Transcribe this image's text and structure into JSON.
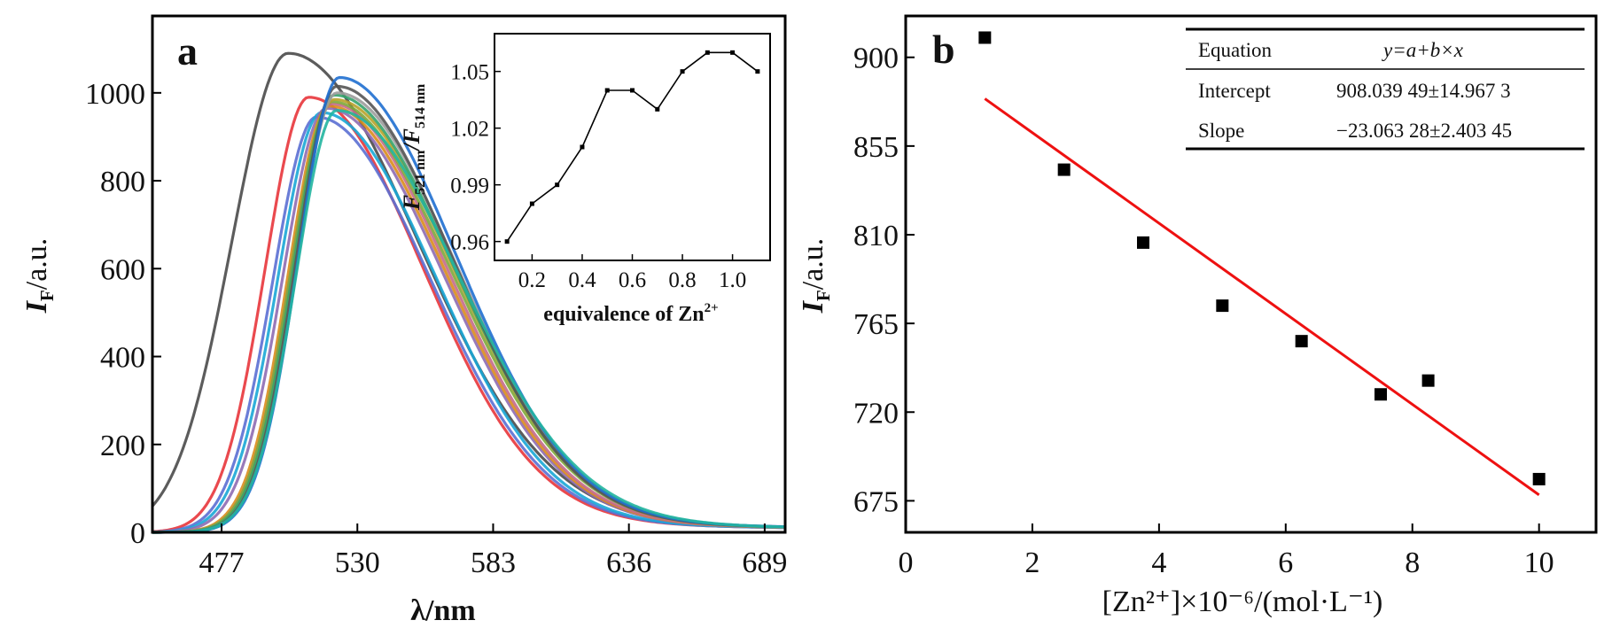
{
  "chart_data": [
    {
      "panel": "a",
      "type": "line",
      "xlabel": "λ/nm",
      "ylabel_main": "I",
      "ylabel_sub": "F",
      "ylabel_tail": "/a.u.",
      "x_ticks": [
        "477",
        "530",
        "583",
        "636",
        "689"
      ],
      "y_ticks": [
        "0",
        "200",
        "400",
        "600",
        "800",
        "1000"
      ],
      "xlim": [
        450,
        697
      ],
      "ylim": [
        0,
        1175
      ],
      "peak_wavelength": [
        503,
        511,
        514,
        516,
        518,
        519,
        520,
        520,
        521,
        521,
        522,
        522,
        523,
        522
      ],
      "series": [
        {
          "color": "#4a4a4a",
          "peak": 503,
          "amplitude": 1090,
          "width_left": 22,
          "width_right": 50
        },
        {
          "color": "#e8353b",
          "peak": 511,
          "amplitude": 990,
          "width_left": 17,
          "width_right": 44
        },
        {
          "color": "#5b6fd3",
          "peak": 514,
          "amplitude": 945,
          "width_left": 17,
          "width_right": 44
        },
        {
          "color": "#1aa7d6",
          "peak": 516,
          "amplitude": 955,
          "width_left": 17,
          "width_right": 44
        },
        {
          "color": "#8e6bb3",
          "peak": 518,
          "amplitude": 965,
          "width_left": 17,
          "width_right": 45
        },
        {
          "color": "#d98c1c",
          "peak": 519,
          "amplitude": 970,
          "width_left": 16,
          "width_right": 45
        },
        {
          "color": "#c46a8a",
          "peak": 520,
          "amplitude": 975,
          "width_left": 16,
          "width_right": 45
        },
        {
          "color": "#7ea83a",
          "peak": 520,
          "amplitude": 980,
          "width_left": 16,
          "width_right": 46
        },
        {
          "color": "#b8a22a",
          "peak": 521,
          "amplitude": 985,
          "width_left": 16,
          "width_right": 46
        },
        {
          "color": "#35a36b",
          "peak": 521,
          "amplitude": 995,
          "width_left": 16,
          "width_right": 46
        },
        {
          "color": "#9c9c9c",
          "peak": 522,
          "amplitude": 1000,
          "width_left": 16,
          "width_right": 46
        },
        {
          "color": "#555555",
          "peak": 522,
          "amplitude": 1015,
          "width_left": 16,
          "width_right": 45
        },
        {
          "color": "#1f6fd0",
          "peak": 523,
          "amplitude": 1035,
          "width_left": 16,
          "width_right": 45
        },
        {
          "color": "#22b5a0",
          "peak": 522,
          "amplitude": 960,
          "width_left": 16,
          "width_right": 47
        }
      ],
      "inset": {
        "type": "line",
        "xlabel_text": "equivalence of Zn",
        "xlabel_sup": "2+",
        "ylabel_parts": [
          "F",
          "521 nm",
          "/F",
          "514 nm"
        ],
        "x": [
          0.1,
          0.2,
          0.3,
          0.4,
          0.5,
          0.6,
          0.7,
          0.8,
          0.9,
          1.0,
          1.1
        ],
        "y": [
          0.96,
          0.98,
          0.99,
          1.01,
          1.04,
          1.04,
          1.03,
          1.05,
          1.06,
          1.06,
          1.05
        ],
        "x_ticks": [
          "0.2",
          "0.4",
          "0.6",
          "0.8",
          "1.0"
        ],
        "y_ticks": [
          "0.96",
          "0.99",
          "1.02",
          "1.05"
        ],
        "xlim": [
          0.05,
          1.15
        ],
        "ylim": [
          0.95,
          1.07
        ]
      }
    },
    {
      "panel": "b",
      "type": "scatter",
      "xlabel": "[Zn²⁺]×10⁻⁶/(mol·L⁻¹)",
      "ylabel_main": "I",
      "ylabel_sub": "F",
      "ylabel_tail": "/a.u.",
      "x": [
        1.25,
        2.5,
        3.75,
        5.0,
        6.25,
        7.5,
        8.25,
        10.0
      ],
      "y": [
        910,
        843,
        806,
        774,
        756,
        729,
        736,
        686
      ],
      "fit": {
        "x": [
          1.25,
          10.0
        ],
        "y": [
          879,
          678
        ],
        "color": "#ee1111"
      },
      "x_ticks": [
        "0",
        "2",
        "4",
        "6",
        "8",
        "10"
      ],
      "y_ticks": [
        "675",
        "720",
        "765",
        "810",
        "855",
        "900"
      ],
      "xlim": [
        0,
        10.9
      ],
      "ylim": [
        659,
        921
      ],
      "table": {
        "rows": [
          {
            "label": "Equation",
            "value": "y=a+b×x"
          },
          {
            "label": "Intercept",
            "value": "908.039 49±14.967 3"
          },
          {
            "label": "Slope",
            "value": "−23.063 28±2.403 45"
          }
        ]
      }
    }
  ]
}
